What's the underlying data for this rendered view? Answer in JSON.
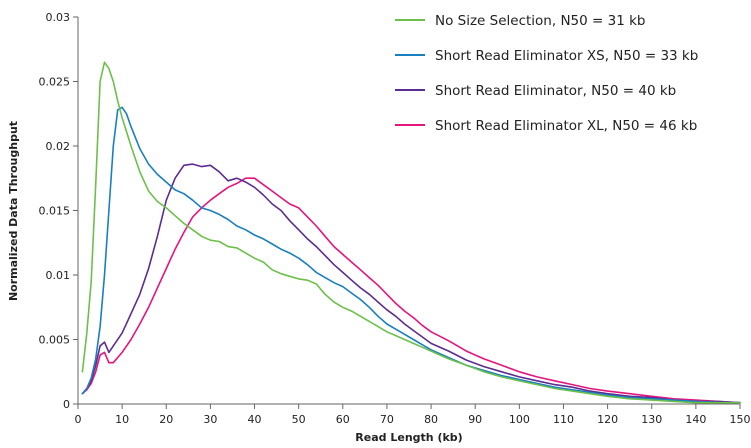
{
  "chart_data": {
    "type": "line",
    "xlabel": "Read Length (kb)",
    "ylabel": "Normalized Data Throughput",
    "xlim": [
      0,
      150
    ],
    "ylim": [
      0,
      0.03
    ],
    "x_ticks": [
      "0",
      "10",
      "20",
      "30",
      "40",
      "50",
      "60",
      "70",
      "80",
      "90",
      "100",
      "110",
      "120",
      "130",
      "140",
      "150"
    ],
    "y_ticks": [
      "0",
      "0.005",
      "0.01",
      "0.015",
      "0.02",
      "0.025",
      "0.03"
    ],
    "grid": false,
    "legend_position": "top-right",
    "series": [
      {
        "name": "No Size Selection, N50 = 31 kb",
        "color": "#6cc04a",
        "points": [
          [
            1,
            0.0025
          ],
          [
            2,
            0.0055
          ],
          [
            3,
            0.0095
          ],
          [
            4,
            0.017
          ],
          [
            5,
            0.025
          ],
          [
            6,
            0.0265
          ],
          [
            7,
            0.026
          ],
          [
            8,
            0.025
          ],
          [
            9,
            0.0235
          ],
          [
            10,
            0.0222
          ],
          [
            12,
            0.02
          ],
          [
            14,
            0.018
          ],
          [
            16,
            0.0165
          ],
          [
            18,
            0.0157
          ],
          [
            20,
            0.0152
          ],
          [
            22,
            0.0146
          ],
          [
            24,
            0.014
          ],
          [
            26,
            0.0135
          ],
          [
            28,
            0.013
          ],
          [
            30,
            0.0127
          ],
          [
            32,
            0.0126
          ],
          [
            34,
            0.0122
          ],
          [
            36,
            0.0121
          ],
          [
            38,
            0.0117
          ],
          [
            40,
            0.0113
          ],
          [
            42,
            0.011
          ],
          [
            44,
            0.0104
          ],
          [
            46,
            0.0101
          ],
          [
            48,
            0.0099
          ],
          [
            50,
            0.0097
          ],
          [
            52,
            0.0096
          ],
          [
            54,
            0.0093
          ],
          [
            56,
            0.0085
          ],
          [
            58,
            0.0079
          ],
          [
            60,
            0.0075
          ],
          [
            62,
            0.0072
          ],
          [
            64,
            0.0068
          ],
          [
            66,
            0.0064
          ],
          [
            68,
            0.006
          ],
          [
            70,
            0.0056
          ],
          [
            72,
            0.0053
          ],
          [
            74,
            0.005
          ],
          [
            76,
            0.0047
          ],
          [
            78,
            0.0044
          ],
          [
            80,
            0.0041
          ],
          [
            84,
            0.0035
          ],
          [
            88,
            0.003
          ],
          [
            92,
            0.0025
          ],
          [
            96,
            0.0021
          ],
          [
            100,
            0.0018
          ],
          [
            104,
            0.0015
          ],
          [
            108,
            0.0012
          ],
          [
            112,
            0.001
          ],
          [
            116,
            0.0008
          ],
          [
            120,
            0.0006
          ],
          [
            125,
            0.0004
          ],
          [
            130,
            0.0003
          ],
          [
            135,
            0.0002
          ],
          [
            140,
            0.0001
          ],
          [
            145,
            0.0001
          ],
          [
            150,
            0.0001
          ]
        ]
      },
      {
        "name": "Short Read Eliminator XS, N50 = 33 kb",
        "color": "#1a7fc1",
        "points": [
          [
            1,
            0.0008
          ],
          [
            2,
            0.0012
          ],
          [
            3,
            0.002
          ],
          [
            4,
            0.0035
          ],
          [
            5,
            0.006
          ],
          [
            6,
            0.01
          ],
          [
            7,
            0.015
          ],
          [
            8,
            0.02
          ],
          [
            9,
            0.0228
          ],
          [
            10,
            0.023
          ],
          [
            11,
            0.0225
          ],
          [
            12,
            0.0215
          ],
          [
            14,
            0.0198
          ],
          [
            16,
            0.0186
          ],
          [
            18,
            0.0178
          ],
          [
            20,
            0.0172
          ],
          [
            22,
            0.0166
          ],
          [
            24,
            0.0163
          ],
          [
            26,
            0.0158
          ],
          [
            28,
            0.0152
          ],
          [
            30,
            0.015
          ],
          [
            32,
            0.0147
          ],
          [
            34,
            0.0143
          ],
          [
            36,
            0.0138
          ],
          [
            38,
            0.0135
          ],
          [
            40,
            0.0131
          ],
          [
            42,
            0.0128
          ],
          [
            44,
            0.0124
          ],
          [
            46,
            0.012
          ],
          [
            48,
            0.0117
          ],
          [
            50,
            0.0113
          ],
          [
            52,
            0.0108
          ],
          [
            54,
            0.0102
          ],
          [
            56,
            0.0098
          ],
          [
            58,
            0.0094
          ],
          [
            60,
            0.0091
          ],
          [
            62,
            0.0086
          ],
          [
            64,
            0.0081
          ],
          [
            66,
            0.0075
          ],
          [
            68,
            0.0068
          ],
          [
            70,
            0.0062
          ],
          [
            72,
            0.0058
          ],
          [
            74,
            0.0054
          ],
          [
            76,
            0.005
          ],
          [
            78,
            0.0046
          ],
          [
            80,
            0.0042
          ],
          [
            84,
            0.0036
          ],
          [
            88,
            0.003
          ],
          [
            92,
            0.0026
          ],
          [
            96,
            0.0022
          ],
          [
            100,
            0.0019
          ],
          [
            104,
            0.0016
          ],
          [
            108,
            0.0013
          ],
          [
            112,
            0.0011
          ],
          [
            116,
            0.0009
          ],
          [
            120,
            0.0007
          ],
          [
            125,
            0.0005
          ],
          [
            130,
            0.0004
          ],
          [
            135,
            0.0003
          ],
          [
            140,
            0.0002
          ],
          [
            145,
            0.0001
          ],
          [
            150,
            0.0001
          ]
        ]
      },
      {
        "name": "Short Read Eliminator, N50 = 40 kb",
        "color": "#5b2d90",
        "points": [
          [
            1,
            0.0008
          ],
          [
            2,
            0.0012
          ],
          [
            3,
            0.0018
          ],
          [
            4,
            0.003
          ],
          [
            5,
            0.0045
          ],
          [
            6,
            0.0048
          ],
          [
            7,
            0.004
          ],
          [
            8,
            0.0045
          ],
          [
            10,
            0.0055
          ],
          [
            12,
            0.007
          ],
          [
            14,
            0.0085
          ],
          [
            16,
            0.0105
          ],
          [
            18,
            0.013
          ],
          [
            20,
            0.0158
          ],
          [
            22,
            0.0175
          ],
          [
            24,
            0.0185
          ],
          [
            26,
            0.0186
          ],
          [
            28,
            0.0184
          ],
          [
            30,
            0.0185
          ],
          [
            32,
            0.018
          ],
          [
            34,
            0.0173
          ],
          [
            36,
            0.0175
          ],
          [
            38,
            0.0172
          ],
          [
            40,
            0.0168
          ],
          [
            42,
            0.0162
          ],
          [
            44,
            0.0155
          ],
          [
            46,
            0.015
          ],
          [
            48,
            0.0142
          ],
          [
            50,
            0.0135
          ],
          [
            52,
            0.0128
          ],
          [
            54,
            0.0122
          ],
          [
            56,
            0.0115
          ],
          [
            58,
            0.0108
          ],
          [
            60,
            0.0102
          ],
          [
            62,
            0.0096
          ],
          [
            64,
            0.009
          ],
          [
            66,
            0.0085
          ],
          [
            68,
            0.0079
          ],
          [
            70,
            0.0073
          ],
          [
            72,
            0.0068
          ],
          [
            74,
            0.0062
          ],
          [
            76,
            0.0057
          ],
          [
            78,
            0.0052
          ],
          [
            80,
            0.0047
          ],
          [
            84,
            0.0041
          ],
          [
            88,
            0.0034
          ],
          [
            92,
            0.0029
          ],
          [
            96,
            0.0025
          ],
          [
            100,
            0.0021
          ],
          [
            104,
            0.0018
          ],
          [
            108,
            0.0015
          ],
          [
            112,
            0.0013
          ],
          [
            116,
            0.001
          ],
          [
            120,
            0.0008
          ],
          [
            125,
            0.0006
          ],
          [
            130,
            0.0005
          ],
          [
            135,
            0.0003
          ],
          [
            140,
            0.0002
          ],
          [
            145,
            0.0002
          ],
          [
            150,
            0.0001
          ]
        ]
      },
      {
        "name": "Short Read Eliminator XL, N50 = 46 kb",
        "color": "#e6157e",
        "points": [
          [
            1,
            0.0008
          ],
          [
            2,
            0.0011
          ],
          [
            3,
            0.0016
          ],
          [
            4,
            0.0025
          ],
          [
            5,
            0.0038
          ],
          [
            6,
            0.004
          ],
          [
            7,
            0.0032
          ],
          [
            8,
            0.0032
          ],
          [
            10,
            0.004
          ],
          [
            12,
            0.005
          ],
          [
            14,
            0.0062
          ],
          [
            16,
            0.0075
          ],
          [
            18,
            0.009
          ],
          [
            20,
            0.0105
          ],
          [
            22,
            0.012
          ],
          [
            24,
            0.0133
          ],
          [
            26,
            0.0145
          ],
          [
            28,
            0.0152
          ],
          [
            30,
            0.0158
          ],
          [
            32,
            0.0163
          ],
          [
            34,
            0.0168
          ],
          [
            36,
            0.0171
          ],
          [
            38,
            0.0175
          ],
          [
            40,
            0.0175
          ],
          [
            42,
            0.017
          ],
          [
            44,
            0.0165
          ],
          [
            46,
            0.016
          ],
          [
            48,
            0.0155
          ],
          [
            50,
            0.0152
          ],
          [
            52,
            0.0145
          ],
          [
            54,
            0.0138
          ],
          [
            56,
            0.013
          ],
          [
            58,
            0.0122
          ],
          [
            60,
            0.0116
          ],
          [
            62,
            0.011
          ],
          [
            64,
            0.0104
          ],
          [
            66,
            0.0098
          ],
          [
            68,
            0.0092
          ],
          [
            70,
            0.0085
          ],
          [
            72,
            0.0078
          ],
          [
            74,
            0.0072
          ],
          [
            76,
            0.0067
          ],
          [
            78,
            0.0061
          ],
          [
            80,
            0.0056
          ],
          [
            84,
            0.0049
          ],
          [
            88,
            0.0041
          ],
          [
            92,
            0.0035
          ],
          [
            96,
            0.003
          ],
          [
            100,
            0.0025
          ],
          [
            104,
            0.0021
          ],
          [
            108,
            0.0018
          ],
          [
            112,
            0.0015
          ],
          [
            116,
            0.0012
          ],
          [
            120,
            0.001
          ],
          [
            125,
            0.0008
          ],
          [
            130,
            0.0006
          ],
          [
            135,
            0.0004
          ],
          [
            140,
            0.0003
          ],
          [
            145,
            0.0002
          ],
          [
            150,
            0.0001
          ]
        ]
      }
    ]
  }
}
